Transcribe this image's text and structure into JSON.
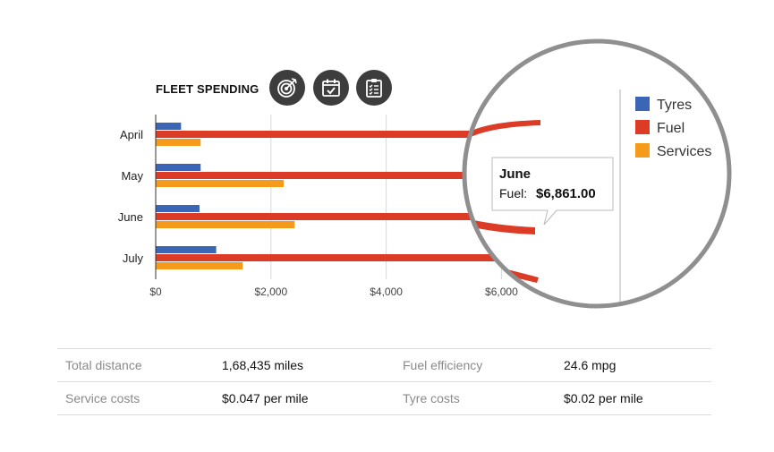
{
  "header": {
    "title": "FLEET SPENDING",
    "icons": [
      "target-icon",
      "calendar-check-icon",
      "clipboard-checklist-icon"
    ]
  },
  "chart_data": {
    "type": "bar",
    "orientation": "horizontal",
    "categories": [
      "April",
      "May",
      "June",
      "July"
    ],
    "series": [
      {
        "name": "Tyres",
        "color": "#3b66b5",
        "values": [
          440,
          780,
          760,
          1050
        ]
      },
      {
        "name": "Fuel",
        "color": "#dc3b26",
        "values": [
          6500,
          6700,
          6861,
          6600
        ]
      },
      {
        "name": "Services",
        "color": "#f59a1b",
        "values": [
          780,
          2220,
          2410,
          1510
        ]
      }
    ],
    "x_ticks": [
      "$0",
      "$2,000",
      "$4,000",
      "$6,000"
    ],
    "x_tick_values": [
      0,
      2000,
      4000,
      6000
    ],
    "legend_position": "right",
    "grid": true,
    "tooltip": {
      "title": "June",
      "label": "Fuel:",
      "value": "$6,861.00"
    }
  },
  "stats": {
    "rows": [
      [
        {
          "label": "Total distance",
          "value": "1,68,435 miles"
        },
        {
          "label": "Fuel efficiency",
          "value": "24.6 mpg"
        }
      ],
      [
        {
          "label": "Service costs",
          "value": "$0.047 per mile"
        },
        {
          "label": "Tyre costs",
          "value": "$0.02 per mile"
        }
      ]
    ]
  }
}
